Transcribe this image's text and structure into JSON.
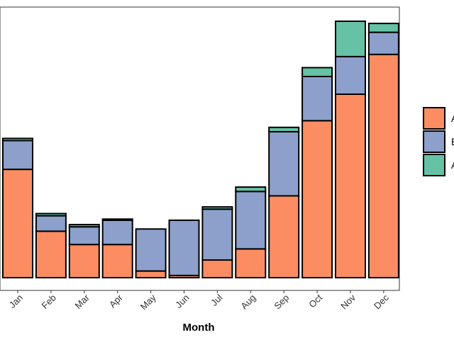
{
  "chart_data": {
    "type": "bar",
    "stacked": true,
    "xlabel": "Month",
    "ylabel": "",
    "categories": [
      "Jan",
      "Feb",
      "Mar",
      "Apr",
      "May",
      "Jun",
      "Jul",
      "Aug",
      "Sep",
      "Oct",
      "Nov",
      "Dec"
    ],
    "series": [
      {
        "color": "#FC8D62",
        "values": [
          49,
          21,
          15,
          15,
          3,
          1,
          8,
          13,
          37,
          71,
          83,
          101
        ]
      },
      {
        "color": "#8DA0CB",
        "values": [
          13,
          7,
          8,
          11,
          19,
          25,
          23,
          26,
          29,
          20,
          17,
          10
        ]
      },
      {
        "color": "#66C2A5",
        "values": [
          1,
          1,
          1,
          0.5,
          0,
          0,
          1,
          2,
          2,
          4,
          16,
          4
        ]
      }
    ],
    "ylim": [
      0,
      125
    ],
    "legend_position": "right",
    "legend_labels": [
      "A",
      "B",
      "A"
    ],
    "grid": false
  }
}
